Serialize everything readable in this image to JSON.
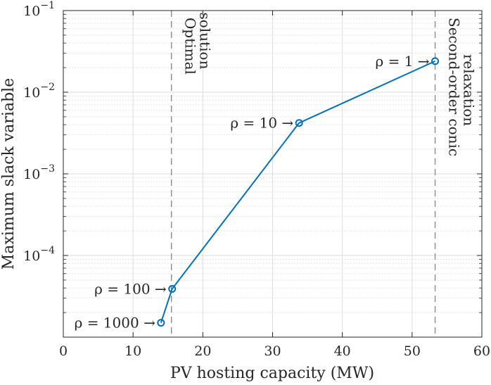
{
  "chart_data": {
    "type": "line",
    "title": "",
    "xlabel": "PV hosting capacity (MW)",
    "ylabel": "Maximum slack variable",
    "xlim": [
      0,
      60
    ],
    "ylim": [
      1e-05,
      0.1
    ],
    "yscale": "log",
    "grid": true,
    "x_ticks": [
      0,
      10,
      20,
      30,
      40,
      50,
      60
    ],
    "x_tick_labels": [
      "0",
      "10",
      "20",
      "30",
      "40",
      "50",
      "60"
    ],
    "y_ticks": [
      0.0001,
      0.001,
      0.01,
      0.1
    ],
    "y_tick_labels": [
      {
        "base": "10",
        "exp": "−4"
      },
      {
        "base": "10",
        "exp": "−3"
      },
      {
        "base": "10",
        "exp": "−2"
      },
      {
        "base": "10",
        "exp": "−1"
      }
    ],
    "series": [
      {
        "name": "rho sweep",
        "color": "#0072BD",
        "marker": "circle",
        "points": [
          {
            "x": 14.0,
            "y": 1.5e-05,
            "label": "ρ = 1000 →"
          },
          {
            "x": 15.6,
            "y": 3.9e-05,
            "label": "ρ = 100 →"
          },
          {
            "x": 33.8,
            "y": 0.0042,
            "label": "ρ = 10 →"
          },
          {
            "x": 53.3,
            "y": 0.024,
            "label": "ρ = 1 →"
          }
        ]
      }
    ],
    "reference_lines": [
      {
        "x": 15.5,
        "label_lines": [
          "Optimal",
          "solution"
        ]
      },
      {
        "x": 53.3,
        "label_lines": [
          "Second-order conic",
          "relaxation"
        ]
      }
    ]
  }
}
